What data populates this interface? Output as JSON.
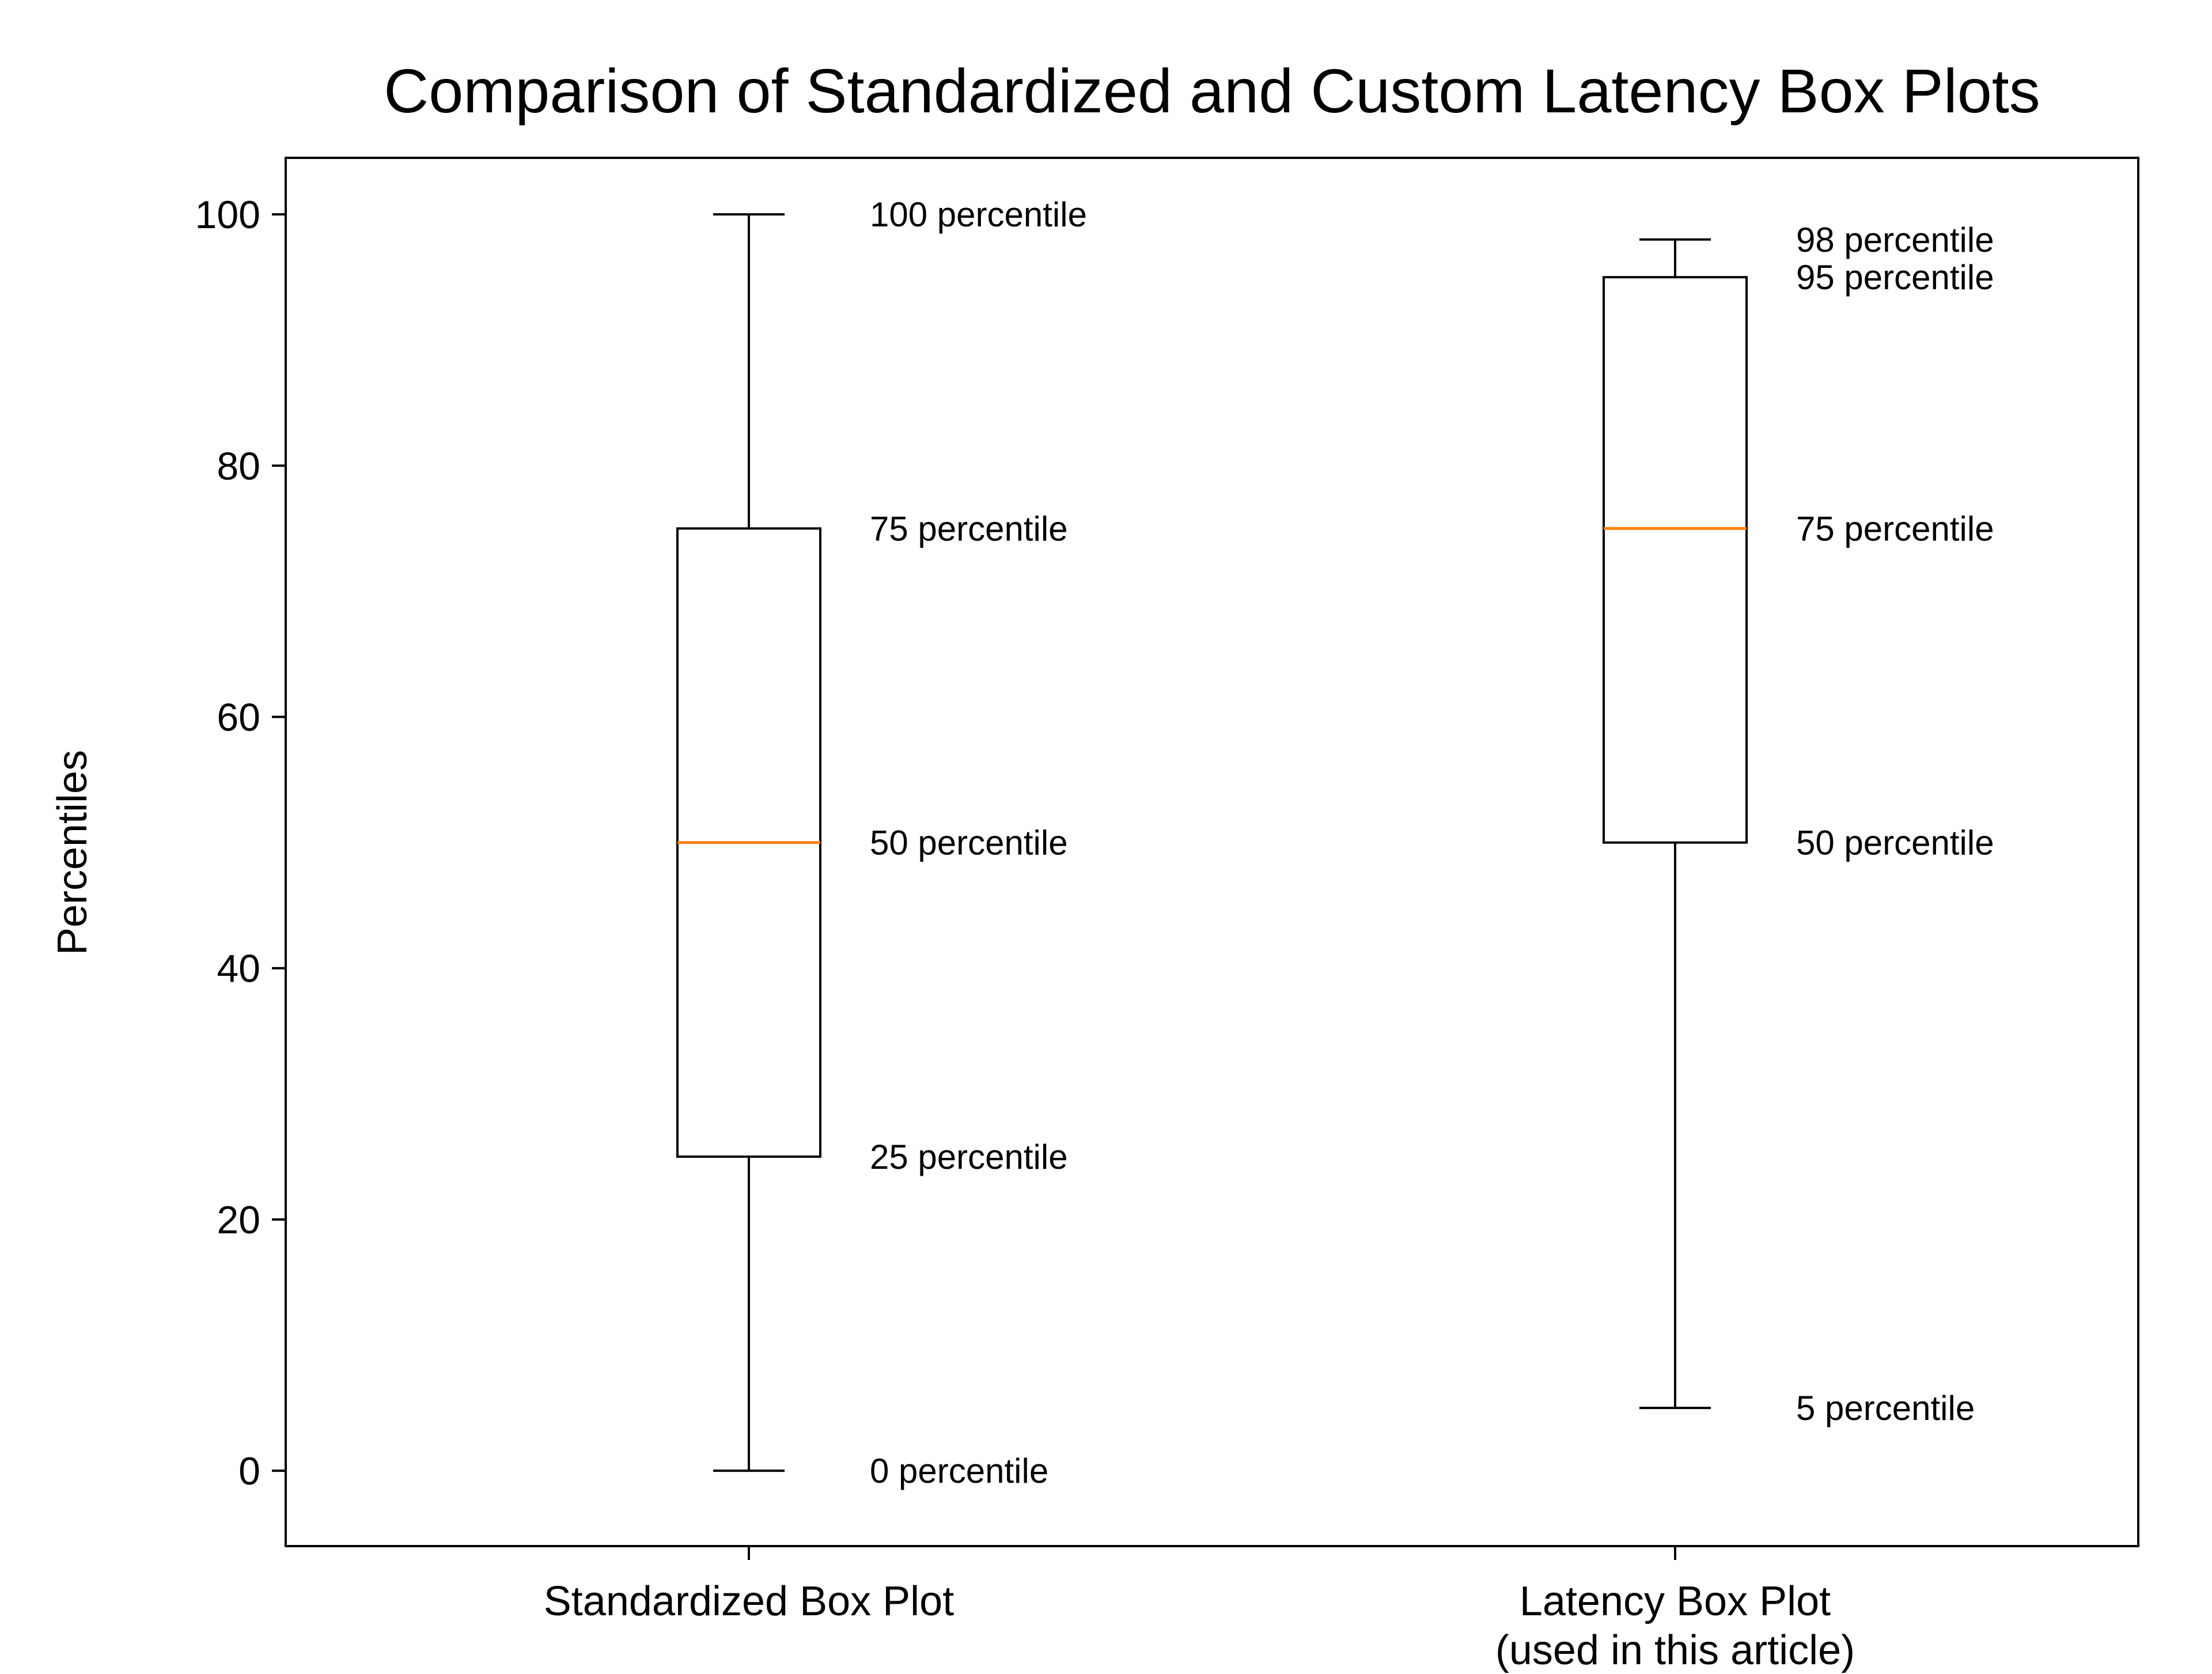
{
  "chart_data": {
    "type": "boxplot",
    "title": "Comparison of Standardized and Custom Latency Box Plots",
    "ylabel": "Percentiles",
    "xlabel": "",
    "yticks": [
      0,
      20,
      40,
      60,
      80,
      100
    ],
    "ylim": [
      -6,
      104.5
    ],
    "grid": false,
    "legend": "none",
    "colors": {
      "median": "#ff7f0e",
      "box": "#000000",
      "text": "#000000",
      "background": "#ffffff"
    },
    "series": [
      {
        "label_lines": [
          "Standardized Box Plot"
        ],
        "whisker_low": 0,
        "q1": 25,
        "median": 50,
        "q3": 75,
        "whisker_high": 100,
        "annotations": [
          {
            "value": 100,
            "text": "100 percentile"
          },
          {
            "value": 75,
            "text": "75 percentile"
          },
          {
            "value": 50,
            "text": "50 percentile"
          },
          {
            "value": 25,
            "text": "25 percentile"
          },
          {
            "value": 0,
            "text": "0 percentile"
          }
        ]
      },
      {
        "label_lines": [
          "Latency Box Plot",
          "(used in this article)"
        ],
        "whisker_low": 5,
        "q1": 50,
        "median": 75,
        "q3": 95,
        "whisker_high": 98,
        "annotations": [
          {
            "value": 98,
            "text": "98 percentile"
          },
          {
            "value": 95,
            "text": "95 percentile"
          },
          {
            "value": 75,
            "text": "75 percentile"
          },
          {
            "value": 50,
            "text": "50 percentile"
          },
          {
            "value": 5,
            "text": "5 percentile"
          }
        ]
      }
    ]
  }
}
